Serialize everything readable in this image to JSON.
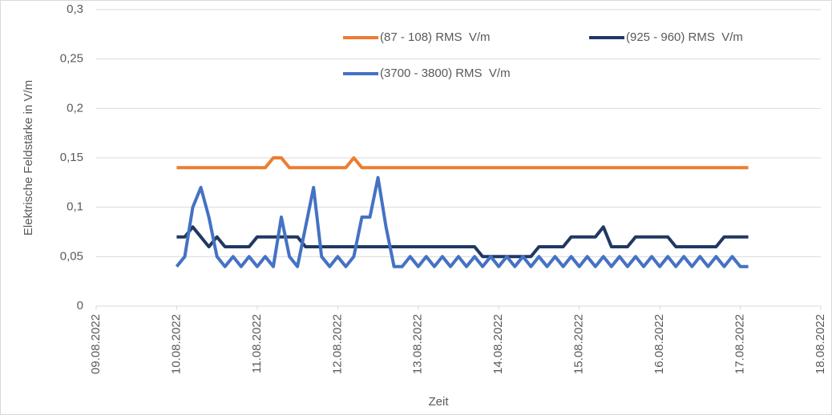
{
  "chart_data": {
    "type": "line",
    "y_label": "Elektrische Feldstärke in V/m",
    "x_label": "Zeit",
    "x": [
      10,
      10.1,
      10.2,
      10.3,
      10.4,
      10.5,
      10.6,
      10.7,
      10.8,
      10.9,
      11,
      11.1,
      11.2,
      11.3,
      11.4,
      11.5,
      11.6,
      11.7,
      11.8,
      11.9,
      12,
      12.1,
      12.2,
      12.3,
      12.4,
      12.5,
      12.6,
      12.7,
      12.8,
      12.9,
      13,
      13.1,
      13.2,
      13.3,
      13.4,
      13.5,
      13.6,
      13.7,
      13.8,
      13.9,
      14,
      14.1,
      14.2,
      14.3,
      14.4,
      14.5,
      14.6,
      14.7,
      14.8,
      14.9,
      15,
      15.1,
      15.2,
      15.3,
      15.4,
      15.5,
      15.6,
      15.7,
      15.8,
      15.9,
      16,
      16.1,
      16.2,
      16.3,
      16.4,
      16.5,
      16.6,
      16.7,
      16.8,
      16.9,
      17,
      17.1
    ],
    "series": [
      {
        "name": "(87 - 108) RMS  V/m",
        "color": "#ed7d31",
        "values": [
          0.14,
          0.14,
          0.14,
          0.14,
          0.14,
          0.14,
          0.14,
          0.14,
          0.14,
          0.14,
          0.14,
          0.14,
          0.15,
          0.15,
          0.14,
          0.14,
          0.14,
          0.14,
          0.14,
          0.14,
          0.14,
          0.14,
          0.15,
          0.14,
          0.14,
          0.14,
          0.14,
          0.14,
          0.14,
          0.14,
          0.14,
          0.14,
          0.14,
          0.14,
          0.14,
          0.14,
          0.14,
          0.14,
          0.14,
          0.14,
          0.14,
          0.14,
          0.14,
          0.14,
          0.14,
          0.14,
          0.14,
          0.14,
          0.14,
          0.14,
          0.14,
          0.14,
          0.14,
          0.14,
          0.14,
          0.14,
          0.14,
          0.14,
          0.14,
          0.14,
          0.14,
          0.14,
          0.14,
          0.14,
          0.14,
          0.14,
          0.14,
          0.14,
          0.14,
          0.14,
          0.14,
          0.14
        ]
      },
      {
        "name": "(925 - 960) RMS  V/m",
        "color": "#203864",
        "values": [
          0.07,
          0.07,
          0.08,
          0.07,
          0.06,
          0.07,
          0.06,
          0.06,
          0.06,
          0.06,
          0.07,
          0.07,
          0.07,
          0.07,
          0.07,
          0.07,
          0.06,
          0.06,
          0.06,
          0.06,
          0.06,
          0.06,
          0.06,
          0.06,
          0.06,
          0.06,
          0.06,
          0.06,
          0.06,
          0.06,
          0.06,
          0.06,
          0.06,
          0.06,
          0.06,
          0.06,
          0.06,
          0.06,
          0.05,
          0.05,
          0.05,
          0.05,
          0.05,
          0.05,
          0.05,
          0.06,
          0.06,
          0.06,
          0.06,
          0.07,
          0.07,
          0.07,
          0.07,
          0.08,
          0.06,
          0.06,
          0.06,
          0.07,
          0.07,
          0.07,
          0.07,
          0.07,
          0.06,
          0.06,
          0.06,
          0.06,
          0.06,
          0.06,
          0.07,
          0.07,
          0.07,
          0.07
        ]
      },
      {
        "name": "(3700 - 3800) RMS  V/m",
        "color": "#4472c4",
        "values": [
          0.04,
          0.05,
          0.1,
          0.12,
          0.09,
          0.05,
          0.04,
          0.05,
          0.04,
          0.05,
          0.04,
          0.05,
          0.04,
          0.09,
          0.05,
          0.04,
          0.08,
          0.12,
          0.05,
          0.04,
          0.05,
          0.04,
          0.05,
          0.09,
          0.09,
          0.13,
          0.08,
          0.04,
          0.04,
          0.05,
          0.04,
          0.05,
          0.04,
          0.05,
          0.04,
          0.05,
          0.04,
          0.05,
          0.04,
          0.05,
          0.04,
          0.05,
          0.04,
          0.05,
          0.04,
          0.05,
          0.04,
          0.05,
          0.04,
          0.05,
          0.04,
          0.05,
          0.04,
          0.05,
          0.04,
          0.05,
          0.04,
          0.05,
          0.04,
          0.05,
          0.04,
          0.05,
          0.04,
          0.05,
          0.04,
          0.05,
          0.04,
          0.05,
          0.04,
          0.05,
          0.04,
          0.04
        ]
      }
    ],
    "xlim": [
      9,
      18
    ],
    "xticks": [
      {
        "value": 9,
        "label": "09.08.2022"
      },
      {
        "value": 10,
        "label": "10.08.2022"
      },
      {
        "value": 11,
        "label": "11.08.2022"
      },
      {
        "value": 12,
        "label": "12.08.2022"
      },
      {
        "value": 13,
        "label": "13.08.2022"
      },
      {
        "value": 14,
        "label": "14.08.2022"
      },
      {
        "value": 15,
        "label": "15.08.2022"
      },
      {
        "value": 16,
        "label": "16.08.2022"
      },
      {
        "value": 17,
        "label": "17.08.2022"
      },
      {
        "value": 18,
        "label": "18.08.2022"
      }
    ],
    "ylim": [
      0,
      0.3
    ],
    "yticks": [
      0,
      {
        "value": 0.05,
        "label": "0,05"
      },
      {
        "value": 0.1,
        "label": "0,1"
      },
      {
        "value": 0.15,
        "label": "0,15"
      },
      {
        "value": 0.2,
        "label": "0,2"
      },
      {
        "value": 0.25,
        "label": "0,25"
      },
      {
        "value": 0.3,
        "label": "0,3"
      }
    ],
    "grid": true
  }
}
